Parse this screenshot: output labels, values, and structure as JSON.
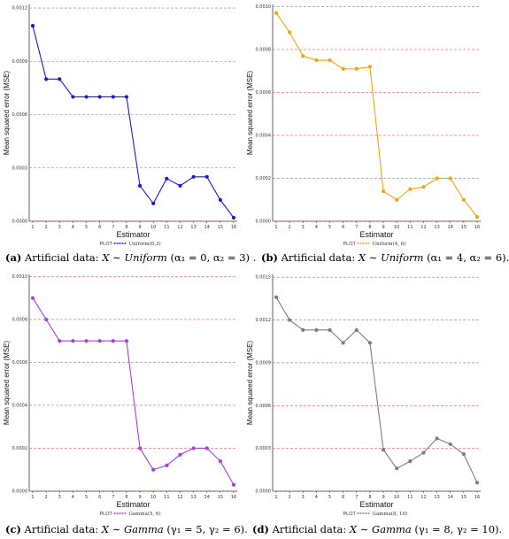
{
  "chart_data": [
    {
      "type": "line",
      "xlabel": "Estimator",
      "ylabel": "Mean squared error (MSE)",
      "x": [
        1,
        2,
        3,
        4,
        5,
        6,
        7,
        8,
        9,
        10,
        11,
        12,
        13,
        14,
        15,
        16
      ],
      "xticks": [
        "1",
        "2",
        "3",
        "4",
        "5",
        "6",
        "7",
        "8",
        "9",
        "10",
        "11",
        "12",
        "13",
        "14",
        "15",
        "16"
      ],
      "ylim": [
        0,
        0.00122
      ],
      "yticks": [
        0,
        0.0003,
        0.0006,
        0.0009,
        0.0012
      ],
      "ytick_labels": [
        "0.0000",
        "0.0003",
        "0.0006",
        "0.0009",
        "0.0012"
      ],
      "grid": "horizontal dashed red",
      "legend_title": "PLOT",
      "series": [
        {
          "name": "Uniform(0,3)",
          "color": "#1a1ad6",
          "values": [
            0.0011,
            0.0008,
            0.0008,
            0.0007,
            0.0007,
            0.0007,
            0.0007,
            0.0007,
            0.0002,
            0.0001,
            0.00024,
            0.0002,
            0.00025,
            0.00025,
            0.00012,
            2e-05
          ]
        }
      ],
      "caption": {
        "tag": "(a)",
        "prefix": "Artificial data:",
        "var": "X",
        "dist": "Uniform",
        "params": "(α₁ = 0, α₂ = 3)",
        "end": "."
      }
    },
    {
      "type": "line",
      "xlabel": "Estimator",
      "ylabel": "Mean squared error (MSE)",
      "x": [
        1,
        2,
        3,
        4,
        5,
        6,
        7,
        8,
        9,
        10,
        11,
        12,
        13,
        14,
        15,
        16
      ],
      "xticks": [
        "1",
        "2",
        "3",
        "4",
        "5",
        "6",
        "7",
        "8",
        "9",
        "10",
        "11",
        "12",
        "13",
        "14",
        "15",
        "16"
      ],
      "ylim": [
        0,
        0.00101
      ],
      "yticks": [
        0,
        0.0002,
        0.0004,
        0.0006,
        0.0008,
        0.001
      ],
      "ytick_labels": [
        "0.0000",
        "0.0002",
        "0.0004",
        "0.0006",
        "0.0008",
        "0.0010"
      ],
      "grid": "horizontal dashed red",
      "legend_title": "PLOT",
      "series": [
        {
          "name": "Uniform(4, 6)",
          "color": "#f5a30e",
          "values": [
            0.00097,
            0.00088,
            0.00077,
            0.00075,
            0.00075,
            0.00071,
            0.00071,
            0.00072,
            0.00014,
            0.0001,
            0.00015,
            0.00016,
            0.0002,
            0.0002,
            0.0001,
            2e-05
          ]
        }
      ],
      "caption": {
        "tag": "(b)",
        "prefix": "Artificial data:",
        "var": "X",
        "dist": "Uniform",
        "params": "(α₁ = 4, α₂ = 6).",
        "end": ""
      }
    },
    {
      "type": "line",
      "xlabel": "Estimator",
      "ylabel": "Mean squared error (MSE)",
      "x": [
        1,
        2,
        3,
        4,
        5,
        6,
        7,
        8,
        9,
        10,
        11,
        12,
        13,
        14,
        15,
        16
      ],
      "xticks": [
        "1",
        "2",
        "3",
        "4",
        "5",
        "6",
        "7",
        "8",
        "9",
        "10",
        "11",
        "12",
        "13",
        "14",
        "15",
        "16"
      ],
      "ylim": [
        0,
        0.00101
      ],
      "yticks": [
        0,
        0.0002,
        0.0004,
        0.0006,
        0.0008,
        0.001
      ],
      "ytick_labels": [
        "0.0000",
        "0.0002",
        "0.0004",
        "0.0006",
        "0.0008",
        "0.0010"
      ],
      "grid": "horizontal dashed red",
      "legend_title": "PLOT",
      "series": [
        {
          "name": "Gamma(5, 6)",
          "color": "#a63de6",
          "values": [
            0.0009,
            0.0008,
            0.0007,
            0.0007,
            0.0007,
            0.0007,
            0.0007,
            0.0007,
            0.0002,
            0.0001,
            0.00012,
            0.00017,
            0.0002,
            0.0002,
            0.00014,
            3e-05
          ]
        }
      ],
      "caption": {
        "tag": "(c)",
        "prefix": "Artificial data:",
        "var": "X",
        "dist": "Gamma",
        "params": "(γ₁ = 5, γ₂ = 6).",
        "end": ""
      }
    },
    {
      "type": "line",
      "xlabel": "Estimator",
      "ylabel": "Mean squared error (MSE)",
      "x": [
        1,
        2,
        3,
        4,
        5,
        6,
        7,
        8,
        9,
        10,
        11,
        12,
        13,
        14,
        15,
        16
      ],
      "xticks": [
        "1",
        "2",
        "3",
        "4",
        "5",
        "6",
        "7",
        "8",
        "9",
        "10",
        "11",
        "12",
        "13",
        "14",
        "15",
        "16"
      ],
      "ylim": [
        0,
        0.00152
      ],
      "yticks": [
        0,
        0.0003,
        0.0006,
        0.0009,
        0.0012,
        0.0015
      ],
      "ytick_labels": [
        "0.0000",
        "0.0003",
        "0.0006",
        "0.0009",
        "0.0012",
        "0.0015"
      ],
      "grid": "horizontal dashed red",
      "legend_title": "PLOT",
      "series": [
        {
          "name": "Gamma(8, 10)",
          "color": "#7d7d7d",
          "values": [
            0.00136,
            0.0012,
            0.00113,
            0.00113,
            0.00113,
            0.00104,
            0.00113,
            0.00104,
            0.00029,
            0.00016,
            0.00021,
            0.00027,
            0.00037,
            0.00033,
            0.00026,
            6e-05
          ]
        }
      ],
      "caption": {
        "tag": "(d)",
        "prefix": "Artificial data:",
        "var": "X",
        "dist": "Gamma",
        "params": "(γ₁ = 8, γ₂ = 10).",
        "end": ""
      }
    }
  ]
}
